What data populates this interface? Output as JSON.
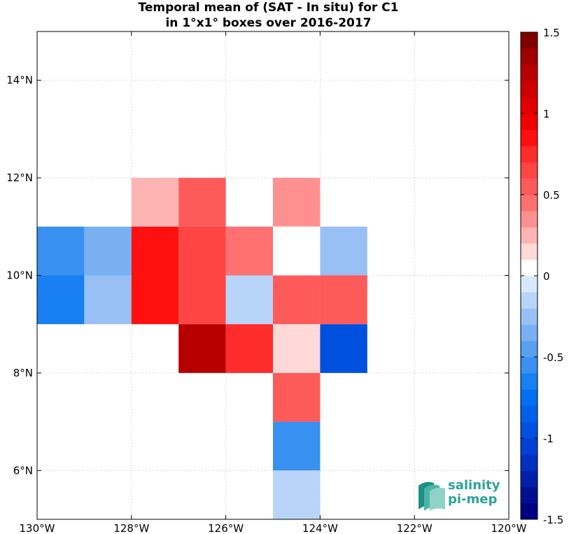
{
  "title": {
    "line1": "Temporal mean of (SAT - In situ) for C1",
    "line2": "in 1°x1° boxes over 2016-2017"
  },
  "logo": {
    "line1": "salinity",
    "line2": "pi-mep"
  },
  "chart_data": {
    "type": "heatmap",
    "title": "Temporal mean of (SAT - In situ) for C1 in 1°x1° boxes over 2016-2017",
    "xlim": [
      -130,
      -120
    ],
    "ylim": [
      5,
      15
    ],
    "x_ticks": [
      {
        "value": -130,
        "label": "130°W"
      },
      {
        "value": -128,
        "label": "128°W"
      },
      {
        "value": -126,
        "label": "126°W"
      },
      {
        "value": -124,
        "label": "124°W"
      },
      {
        "value": -122,
        "label": "122°W"
      },
      {
        "value": -120,
        "label": "120°W"
      }
    ],
    "y_ticks": [
      {
        "value": 6,
        "label": "6°N"
      },
      {
        "value": 8,
        "label": "8°N"
      },
      {
        "value": 10,
        "label": "10°N"
      },
      {
        "value": 12,
        "label": "12°N"
      },
      {
        "value": 14,
        "label": "14°N"
      }
    ],
    "grid": true,
    "cells": [
      {
        "lon_min": -128,
        "lat_min": 11,
        "value": 0.2
      },
      {
        "lon_min": -127,
        "lat_min": 11,
        "value": 0.55
      },
      {
        "lon_min": -125,
        "lat_min": 11,
        "value": 0.3
      },
      {
        "lon_min": -130,
        "lat_min": 10,
        "value": -0.55
      },
      {
        "lon_min": -129,
        "lat_min": 10,
        "value": -0.35
      },
      {
        "lon_min": -128,
        "lat_min": 10,
        "value": 0.8
      },
      {
        "lon_min": -127,
        "lat_min": 10,
        "value": 0.65
      },
      {
        "lon_min": -126,
        "lat_min": 10,
        "value": 0.4
      },
      {
        "lon_min": -125,
        "lat_min": 10,
        "value": 0.05
      },
      {
        "lon_min": -124,
        "lat_min": 10,
        "value": -0.25
      },
      {
        "lon_min": -130,
        "lat_min": 9,
        "value": -0.65
      },
      {
        "lon_min": -129,
        "lat_min": 9,
        "value": -0.25
      },
      {
        "lon_min": -128,
        "lat_min": 9,
        "value": 0.8
      },
      {
        "lon_min": -127,
        "lat_min": 9,
        "value": 0.65
      },
      {
        "lon_min": -126,
        "lat_min": 9,
        "value": -0.15
      },
      {
        "lon_min": -125,
        "lat_min": 9,
        "value": 0.55
      },
      {
        "lon_min": -124,
        "lat_min": 9,
        "value": 0.55
      },
      {
        "lon_min": -127,
        "lat_min": 8,
        "value": 1.3
      },
      {
        "lon_min": -126,
        "lat_min": 8,
        "value": 0.7
      },
      {
        "lon_min": -125,
        "lat_min": 8,
        "value": 0.15
      },
      {
        "lon_min": -124,
        "lat_min": 8,
        "value": -0.9
      },
      {
        "lon_min": -125,
        "lat_min": 7,
        "value": 0.55
      },
      {
        "lon_min": -125,
        "lat_min": 6,
        "value": -0.55
      },
      {
        "lon_min": -125,
        "lat_min": 5,
        "value": -0.15
      }
    ],
    "colorbar": {
      "min": -1.5,
      "max": 1.5,
      "levels": 30,
      "ticks": [
        {
          "value": 1.5,
          "label": "1.5"
        },
        {
          "value": 1,
          "label": "1"
        },
        {
          "value": 0.5,
          "label": "0.5"
        },
        {
          "value": 0,
          "label": "0"
        },
        {
          "value": -0.5,
          "label": "-0.5"
        },
        {
          "value": -1,
          "label": "-1"
        },
        {
          "value": -1.5,
          "label": "-1.5"
        }
      ],
      "colors": [
        "#000080",
        "#001090",
        "#0020a8",
        "#0030c0",
        "#0040d4",
        "#0050e0",
        "#0060ea",
        "#0070f0",
        "#1880f0",
        "#3890f0",
        "#58a0f0",
        "#78b0f2",
        "#98c0f4",
        "#b8d4f8",
        "#d8e8fc",
        "#ffffff",
        "#ffd8d8",
        "#ffb4b4",
        "#ff9090",
        "#ff7070",
        "#ff5a5a",
        "#ff4444",
        "#ff2c2c",
        "#ff1010",
        "#f00000",
        "#e00000",
        "#cc0000",
        "#b80000",
        "#a00000",
        "#800000"
      ]
    }
  }
}
